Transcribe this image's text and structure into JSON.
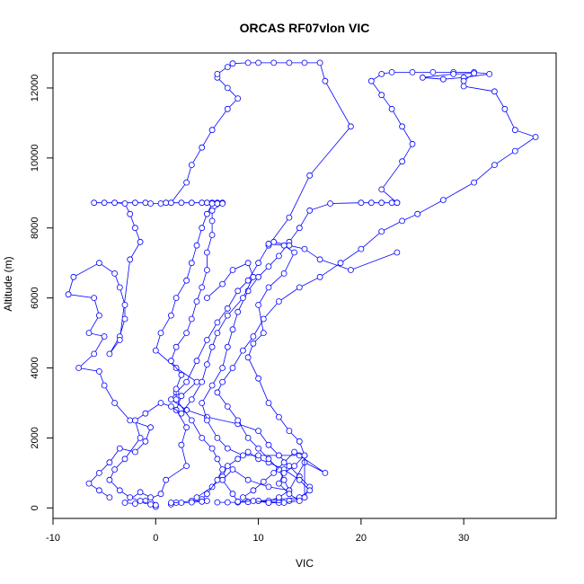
{
  "chart_data": {
    "type": "line",
    "title": "ORCAS RF07vlon VIC",
    "xlabel": "VIC",
    "ylabel": "Altitude (m)",
    "xlim": [
      -10,
      39
    ],
    "ylim": [
      -300,
      13000
    ],
    "x_ticks": [
      -10,
      0,
      10,
      20,
      30
    ],
    "y_ticks": [
      0,
      2000,
      4000,
      6000,
      8000,
      10000,
      12000
    ],
    "grid": false,
    "line_color": "#0000ff",
    "marker": "open-circle",
    "series": [
      {
        "values": [
          [
            0,
            50
          ],
          [
            0,
            30
          ],
          [
            0,
            80
          ],
          [
            -0.5,
            300
          ],
          [
            -1.5,
            450
          ],
          [
            -3,
            150
          ],
          [
            -2,
            120
          ],
          [
            -1,
            200
          ],
          [
            0.5,
            400
          ],
          [
            1,
            800
          ],
          [
            3,
            1200
          ],
          [
            2.5,
            1800
          ],
          [
            3,
            2300
          ],
          [
            2,
            2800
          ],
          [
            2.5,
            3200
          ],
          [
            4,
            3600
          ],
          [
            2,
            4000
          ],
          [
            0,
            4500
          ],
          [
            0.5,
            5000
          ],
          [
            1.5,
            5500
          ],
          [
            2,
            6000
          ],
          [
            3,
            6500
          ],
          [
            3.5,
            7000
          ],
          [
            4,
            7500
          ],
          [
            4.5,
            8000
          ],
          [
            5,
            8400
          ],
          [
            5.5,
            8700
          ],
          [
            4.5,
            8720
          ],
          [
            3.5,
            8720
          ],
          [
            2.5,
            8720
          ],
          [
            1.5,
            8720
          ],
          [
            3,
            9300
          ],
          [
            3.5,
            9800
          ],
          [
            4.5,
            10300
          ],
          [
            5.5,
            10800
          ],
          [
            7,
            11400
          ],
          [
            8,
            11700
          ],
          [
            7,
            12000
          ],
          [
            6,
            12300
          ],
          [
            6,
            12400
          ],
          [
            7,
            12600
          ],
          [
            7.5,
            12700
          ],
          [
            9,
            12720
          ],
          [
            10,
            12720
          ],
          [
            11.5,
            12720
          ],
          [
            13,
            12720
          ],
          [
            14.5,
            12720
          ],
          [
            16,
            12720
          ],
          [
            16.5,
            12200
          ],
          [
            19,
            10900
          ],
          [
            15,
            9500
          ],
          [
            13,
            8300
          ],
          [
            11,
            7500
          ],
          [
            10,
            7000
          ],
          [
            9,
            6500
          ],
          [
            8,
            6200
          ],
          [
            7,
            5700
          ],
          [
            6,
            5300
          ],
          [
            5,
            4800
          ],
          [
            4,
            4200
          ],
          [
            3,
            3600
          ],
          [
            2,
            3300
          ],
          [
            1.5,
            3100
          ],
          [
            3,
            2800
          ],
          [
            5,
            2600
          ],
          [
            8,
            2400
          ],
          [
            10,
            2200
          ],
          [
            11,
            1800
          ],
          [
            12,
            1500
          ],
          [
            13,
            1200
          ],
          [
            14,
            900
          ],
          [
            15,
            600
          ],
          [
            14.5,
            300
          ],
          [
            13,
            200
          ],
          [
            11,
            180
          ],
          [
            9,
            170
          ],
          [
            8,
            160
          ],
          [
            7,
            160
          ],
          [
            6,
            160
          ]
        ]
      },
      {
        "values": [
          [
            -4.5,
            300
          ],
          [
            -5.5,
            500
          ],
          [
            -6.5,
            700
          ],
          [
            -5.5,
            1000
          ],
          [
            -4.5,
            1300
          ],
          [
            -3.5,
            1700
          ],
          [
            -2,
            1600
          ],
          [
            -1,
            1900
          ],
          [
            -0.5,
            2300
          ],
          [
            -2.5,
            2500
          ],
          [
            -4,
            3000
          ],
          [
            -5,
            3500
          ],
          [
            -5.5,
            3900
          ],
          [
            -7.5,
            4000
          ],
          [
            -6,
            4400
          ],
          [
            -5,
            4900
          ],
          [
            -6.5,
            5000
          ],
          [
            -5.5,
            5500
          ],
          [
            -6,
            6000
          ],
          [
            -8.5,
            6100
          ],
          [
            -8,
            6600
          ],
          [
            -5.5,
            7000
          ],
          [
            -4,
            6700
          ],
          [
            -3.5,
            6300
          ],
          [
            -3,
            5800
          ],
          [
            -3,
            5400
          ],
          [
            -3.5,
            4900
          ],
          [
            -4.5,
            4400
          ],
          [
            -3.5,
            4800
          ],
          [
            -2.5,
            7100
          ],
          [
            -1.5,
            7600
          ],
          [
            -2,
            8000
          ],
          [
            -2.5,
            8400
          ],
          [
            -3,
            8700
          ],
          [
            -4,
            8720
          ],
          [
            -5,
            8720
          ],
          [
            -6,
            8720
          ],
          [
            -2,
            8720
          ],
          [
            -1,
            8720
          ],
          [
            -0.5,
            8700
          ],
          [
            0.5,
            8700
          ],
          [
            1,
            8720
          ]
        ]
      },
      {
        "values": [
          [
            1.5,
            100
          ],
          [
            2,
            150
          ],
          [
            3.5,
            200
          ],
          [
            5,
            200
          ],
          [
            4,
            300
          ],
          [
            5.5,
            600
          ],
          [
            6.5,
            900
          ],
          [
            7,
            1200
          ],
          [
            8,
            1400
          ],
          [
            9,
            1600
          ],
          [
            10,
            1400
          ],
          [
            11,
            1300
          ],
          [
            12.5,
            1100
          ],
          [
            14,
            800
          ],
          [
            15,
            500
          ],
          [
            14,
            300
          ],
          [
            12,
            250
          ],
          [
            10,
            200
          ],
          [
            8,
            180
          ],
          [
            7.5,
            400
          ],
          [
            6.5,
            800
          ],
          [
            7.5,
            1100
          ],
          [
            9,
            800
          ],
          [
            11,
            600
          ],
          [
            13,
            500
          ],
          [
            14.5,
            1300
          ],
          [
            16.5,
            1000
          ],
          [
            14,
            1500
          ],
          [
            12,
            1500
          ],
          [
            10,
            1500
          ],
          [
            8.5,
            1500
          ],
          [
            7,
            1700
          ],
          [
            6,
            2000
          ],
          [
            5,
            2500
          ],
          [
            4.5,
            3000
          ],
          [
            5.5,
            3500
          ],
          [
            6.5,
            4000
          ],
          [
            7,
            4600
          ],
          [
            7.5,
            5100
          ],
          [
            8,
            5600
          ],
          [
            9,
            6200
          ],
          [
            10,
            6600
          ],
          [
            11,
            6900
          ],
          [
            12,
            7200
          ],
          [
            13,
            7600
          ],
          [
            14,
            8000
          ],
          [
            15,
            8500
          ],
          [
            17,
            8700
          ],
          [
            20,
            8720
          ],
          [
            21,
            8720
          ],
          [
            22,
            8720
          ],
          [
            23,
            8720
          ],
          [
            23.5,
            8720
          ]
        ]
      },
      {
        "values": [
          [
            23.5,
            8720
          ],
          [
            22,
            9100
          ],
          [
            24,
            9900
          ],
          [
            25,
            10400
          ],
          [
            24,
            10900
          ],
          [
            23,
            11400
          ],
          [
            22,
            11800
          ],
          [
            21,
            12200
          ],
          [
            22,
            12400
          ],
          [
            23,
            12450
          ],
          [
            25,
            12450
          ],
          [
            27,
            12450
          ],
          [
            29,
            12450
          ],
          [
            31,
            12450
          ],
          [
            32.5,
            12400
          ],
          [
            30,
            12300
          ],
          [
            28,
            12250
          ],
          [
            26,
            12300
          ],
          [
            29,
            12400
          ],
          [
            31,
            12420
          ],
          [
            30,
            12200
          ],
          [
            30,
            12050
          ],
          [
            33,
            11900
          ],
          [
            34,
            11400
          ],
          [
            35,
            10800
          ],
          [
            37,
            10600
          ],
          [
            35,
            10200
          ],
          [
            33,
            9800
          ],
          [
            31,
            9300
          ],
          [
            28,
            8800
          ],
          [
            25.5,
            8400
          ],
          [
            24,
            8200
          ],
          [
            22,
            7900
          ],
          [
            20,
            7400
          ],
          [
            18,
            7000
          ],
          [
            16,
            6600
          ],
          [
            14,
            6300
          ],
          [
            12,
            5900
          ],
          [
            10.5,
            5400
          ],
          [
            9.5,
            4900
          ],
          [
            8.5,
            4500
          ],
          [
            7.5,
            4000
          ],
          [
            6.5,
            3600
          ],
          [
            6,
            3300
          ],
          [
            7,
            2900
          ],
          [
            8,
            2500
          ],
          [
            9,
            2000
          ],
          [
            10,
            1700
          ],
          [
            11,
            1400
          ],
          [
            12,
            1100
          ],
          [
            12.5,
            800
          ],
          [
            13,
            500
          ],
          [
            12,
            300
          ],
          [
            11,
            200
          ],
          [
            10,
            200
          ],
          [
            11,
            150
          ],
          [
            12,
            150
          ]
        ]
      },
      {
        "values": [
          [
            23.5,
            7300
          ],
          [
            19,
            6800
          ],
          [
            16,
            7100
          ],
          [
            14.5,
            7400
          ],
          [
            13,
            7500
          ],
          [
            11.5,
            7600
          ],
          [
            11,
            7550
          ],
          [
            12.5,
            7500
          ],
          [
            13.5,
            7300
          ],
          [
            12.5,
            6700
          ],
          [
            11,
            6300
          ],
          [
            10,
            5800
          ],
          [
            10.5,
            5000
          ],
          [
            9.5,
            4700
          ],
          [
            9,
            4300
          ],
          [
            10,
            3700
          ],
          [
            11,
            3000
          ],
          [
            12,
            2600
          ],
          [
            13,
            2200
          ],
          [
            14,
            1900
          ],
          [
            14.5,
            1500
          ],
          [
            13.5,
            1200
          ],
          [
            12.5,
            1000
          ],
          [
            12,
            700
          ],
          [
            13,
            400
          ],
          [
            14,
            200
          ],
          [
            12.5,
            150
          ],
          [
            11,
            150
          ],
          [
            9.5,
            200
          ],
          [
            8.5,
            300
          ],
          [
            9.5,
            500
          ],
          [
            10.5,
            750
          ],
          [
            11.5,
            1000
          ],
          [
            12.5,
            1300
          ],
          [
            13.5,
            1600
          ],
          [
            14.5,
            1500
          ],
          [
            14.5,
            300
          ]
        ]
      },
      {
        "values": [
          [
            5,
            6000
          ],
          [
            6.5,
            6400
          ],
          [
            7.5,
            6800
          ],
          [
            9,
            7000
          ],
          [
            9.5,
            6600
          ],
          [
            8.5,
            6000
          ],
          [
            7,
            5500
          ],
          [
            6,
            5000
          ],
          [
            5.5,
            4600
          ],
          [
            5,
            4100
          ],
          [
            4.5,
            3600
          ],
          [
            3.5,
            3100
          ],
          [
            2.5,
            2700
          ],
          [
            1.5,
            2900
          ],
          [
            0.5,
            3000
          ],
          [
            -1,
            2700
          ],
          [
            -2,
            2500
          ],
          [
            -1.5,
            2000
          ],
          [
            -3,
            1400
          ],
          [
            -4,
            1100
          ],
          [
            -4.5,
            800
          ],
          [
            -3.5,
            500
          ],
          [
            -2.5,
            300
          ],
          [
            -1.5,
            200
          ],
          [
            -0.5,
            100
          ]
        ]
      },
      {
        "values": [
          [
            5,
            8720
          ],
          [
            5.5,
            8720
          ],
          [
            6,
            8720
          ],
          [
            6.5,
            8720
          ],
          [
            5.5,
            8700
          ],
          [
            6,
            8700
          ],
          [
            6.5,
            8700
          ],
          [
            5.5,
            8500
          ],
          [
            5.5,
            8200
          ],
          [
            5.5,
            7800
          ],
          [
            5,
            7300
          ],
          [
            5,
            6800
          ],
          [
            4.5,
            6300
          ],
          [
            4,
            5900
          ],
          [
            3.5,
            5400
          ],
          [
            3,
            5000
          ],
          [
            2,
            4600
          ],
          [
            1.5,
            4200
          ],
          [
            2.5,
            3800
          ],
          [
            2,
            3400
          ],
          [
            2,
            3100
          ],
          [
            3.5,
            2500
          ],
          [
            4.5,
            2000
          ],
          [
            5.5,
            1700
          ],
          [
            6,
            1400
          ],
          [
            6.5,
            1100
          ],
          [
            6,
            800
          ],
          [
            5,
            400
          ],
          [
            4.5,
            250
          ],
          [
            4.5,
            180
          ],
          [
            3.5,
            160
          ],
          [
            2.5,
            150
          ],
          [
            1.5,
            150
          ]
        ]
      }
    ]
  }
}
